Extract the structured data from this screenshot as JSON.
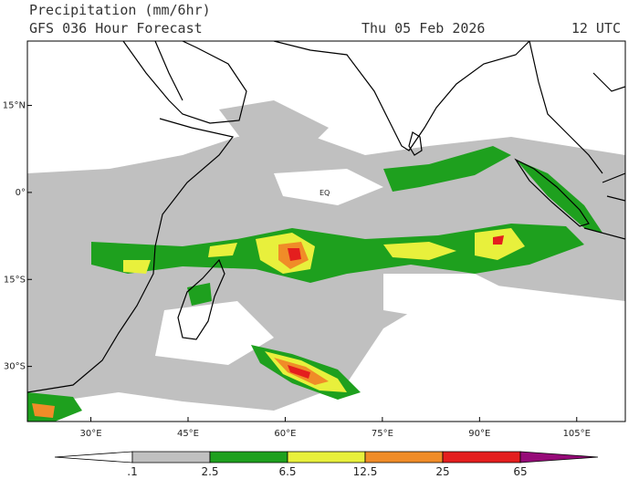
{
  "header": {
    "title": "Precipitation (mm/6hr)",
    "subtitle": "GFS 036 Hour Forecast",
    "date": "Thu 05 Feb 2026",
    "time": "12 UTC"
  },
  "map": {
    "lonlim": [
      20.2,
      112.5
    ],
    "latlim": [
      26.1,
      -39.5
    ],
    "lonticks": [
      {
        "value": 30,
        "label": "30°E"
      },
      {
        "value": 45,
        "label": "45°E"
      },
      {
        "value": 60,
        "label": "60°E"
      },
      {
        "value": 75,
        "label": "75°E"
      },
      {
        "value": 90,
        "label": "90°E"
      },
      {
        "value": 105,
        "label": "105°E"
      }
    ],
    "latticks": [
      {
        "value": 15,
        "label": "15°N"
      },
      {
        "value": 0,
        "label": "0°"
      },
      {
        "value": -15,
        "label": "15°S"
      },
      {
        "value": -30,
        "label": "30°S"
      }
    ],
    "equator_label": "EQ"
  },
  "legend": {
    "levels": [
      ".1",
      "2.5",
      "6.5",
      "12.5",
      "25",
      "65"
    ],
    "colors": [
      "#ffffff",
      "#c0c0c0",
      "#1ea01e",
      "#e8f03c",
      "#f08c28",
      "#e41e1e",
      "#960a78"
    ]
  }
}
